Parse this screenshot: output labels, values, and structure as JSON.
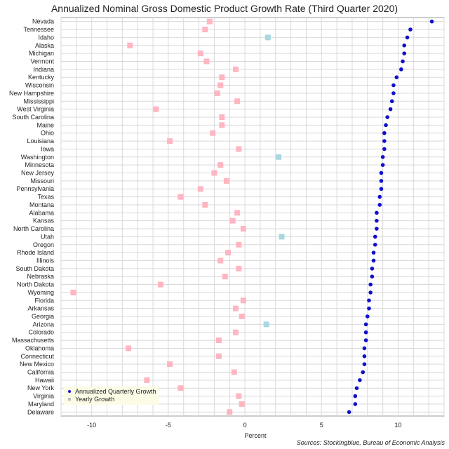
{
  "chart_data": {
    "type": "scatter",
    "title": "Annualized Nominal Gross Domestic Product Growth Rate (Third Quarter 2020)",
    "xlabel": "Percent",
    "ylabel": "",
    "xlim": [
      -12,
      13
    ],
    "xticks": [
      -10,
      -5,
      0,
      5,
      10
    ],
    "grid": true,
    "legend_placement": "bottom-left",
    "source": "Sources: Stockingblue, Bureau of Economic Analysis",
    "categories": [
      "Nevada",
      "Tennessee",
      "Idaho",
      "Alaska",
      "Michigan",
      "Vermont",
      "Indiana",
      "Kentucky",
      "Wisconsin",
      "New Hampshire",
      "Mississippi",
      "West Virginia",
      "South Carolina",
      "Maine",
      "Ohio",
      "Louisiana",
      "Iowa",
      "Washington",
      "Minnesota",
      "New Jersey",
      "Missouri",
      "Pennsylvania",
      "Texas",
      "Montana",
      "Alabama",
      "Kansas",
      "North Carolina",
      "Utah",
      "Oregon",
      "Rhode Island",
      "Illinois",
      "South Dakota",
      "Nebraska",
      "North Dakota",
      "Wyoming",
      "Florida",
      "Arkansas",
      "Georgia",
      "Arizona",
      "Colorado",
      "Massachusetts",
      "Oklahoma",
      "Connecticut",
      "New Mexico",
      "California",
      "Hawaii",
      "New York",
      "Virginia",
      "Maryland",
      "Delaware"
    ],
    "series": [
      {
        "name": "Annualized Quarterly Growth",
        "marker": "dot",
        "color": "#1010cc",
        "values": [
          12.2,
          10.8,
          10.6,
          10.4,
          10.4,
          10.3,
          10.2,
          9.9,
          9.7,
          9.7,
          9.6,
          9.5,
          9.3,
          9.2,
          9.1,
          9.1,
          9.1,
          9.0,
          9.0,
          8.9,
          8.9,
          8.9,
          8.8,
          8.8,
          8.6,
          8.6,
          8.6,
          8.5,
          8.5,
          8.4,
          8.4,
          8.3,
          8.3,
          8.2,
          8.2,
          8.1,
          8.1,
          8.0,
          7.9,
          7.9,
          7.9,
          7.8,
          7.8,
          7.8,
          7.7,
          7.5,
          7.3,
          7.2,
          7.2,
          6.8
        ]
      },
      {
        "name": "Yearly Growth",
        "marker": "square",
        "color": "#ffb6c1",
        "positive_color": "#a8d8e0",
        "values": [
          -2.3,
          -2.6,
          1.5,
          -7.5,
          -2.9,
          -2.5,
          -0.6,
          -1.5,
          -1.6,
          -1.8,
          -0.5,
          -5.8,
          -1.5,
          -1.5,
          -2.1,
          -4.9,
          -0.4,
          2.2,
          -1.6,
          -2.0,
          -1.2,
          -2.9,
          -4.2,
          -2.6,
          -0.5,
          -0.8,
          -0.1,
          2.4,
          -0.4,
          -1.1,
          -1.6,
          -0.4,
          -1.3,
          -5.5,
          -11.2,
          -0.1,
          -0.6,
          -0.2,
          1.4,
          -0.6,
          -1.7,
          -7.6,
          -1.7,
          -4.9,
          -0.7,
          -6.4,
          -4.2,
          -0.4,
          -0.2,
          -1.0
        ]
      }
    ]
  }
}
